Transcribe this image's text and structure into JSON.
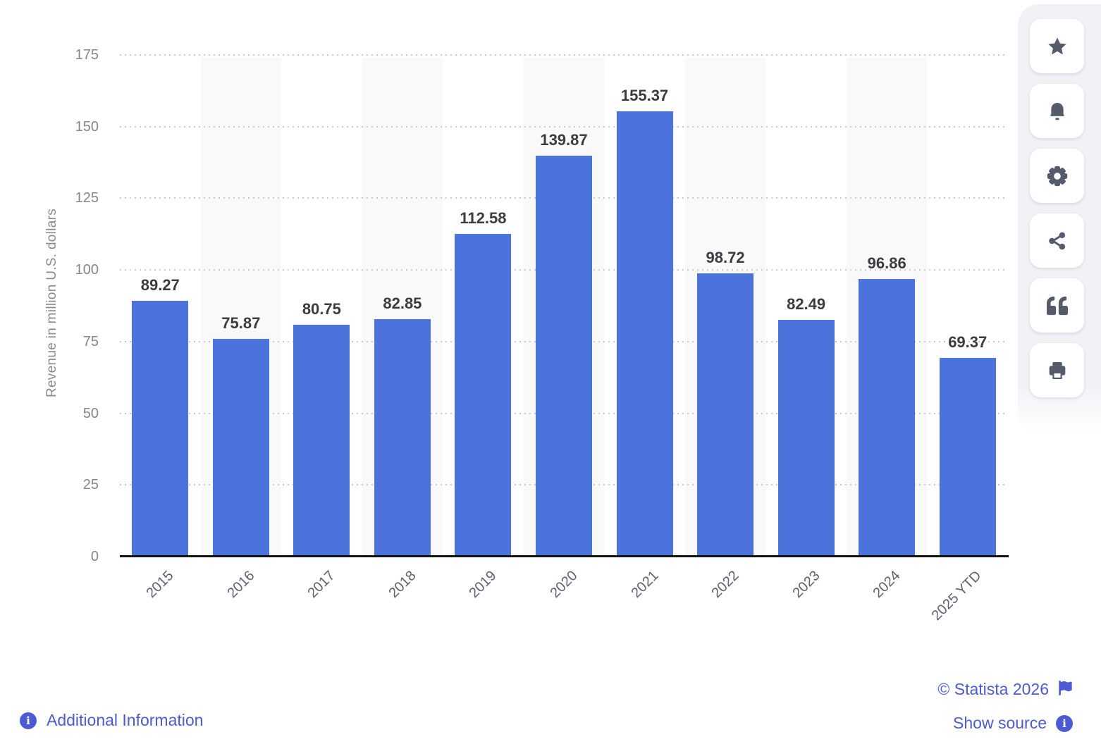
{
  "chart_data": {
    "type": "bar",
    "title": "",
    "categories": [
      "2015",
      "2016",
      "2017",
      "2018",
      "2019",
      "2020",
      "2021",
      "2022",
      "2023",
      "2024",
      "2025 YTD"
    ],
    "values": [
      89.27,
      75.87,
      80.75,
      82.85,
      112.58,
      139.87,
      155.37,
      98.72,
      82.49,
      96.86,
      69.37
    ],
    "value_labels": [
      "89.27",
      "75.87",
      "80.75",
      "82.85",
      "112.58",
      "139.87",
      "155.37",
      "98.72",
      "82.49",
      "96.86",
      "69.37"
    ],
    "xlabel": "",
    "ylabel": "Revenue in million U.S. dollars",
    "ylim": [
      0,
      175
    ],
    "yticks": [
      0,
      25,
      50,
      75,
      100,
      125,
      150,
      175
    ],
    "grid": "horizontal-dotted",
    "legend": "none",
    "bar_color": "#4C73DB",
    "stripe_color": "#F9F9FA",
    "striped_columns": [
      1,
      3,
      5,
      7,
      9
    ]
  },
  "sidebar": {
    "buttons": [
      {
        "name": "favorite",
        "icon": "star-icon"
      },
      {
        "name": "alerts",
        "icon": "bell-icon"
      },
      {
        "name": "settings",
        "icon": "gear-icon"
      },
      {
        "name": "share",
        "icon": "share-icon"
      },
      {
        "name": "cite",
        "icon": "quote-icon"
      },
      {
        "name": "print",
        "icon": "printer-icon"
      }
    ]
  },
  "footer": {
    "additional_information_label": "Additional Information",
    "copyright_label": "© Statista 2026",
    "show_source_label": "Show source"
  },
  "colors": {
    "bar": "#4C73DB",
    "link": "#4C5BD4",
    "icon": "#565B6C",
    "value_label": "#3B3B40",
    "tick_label": "#85858D",
    "axis_line": "#141414"
  }
}
